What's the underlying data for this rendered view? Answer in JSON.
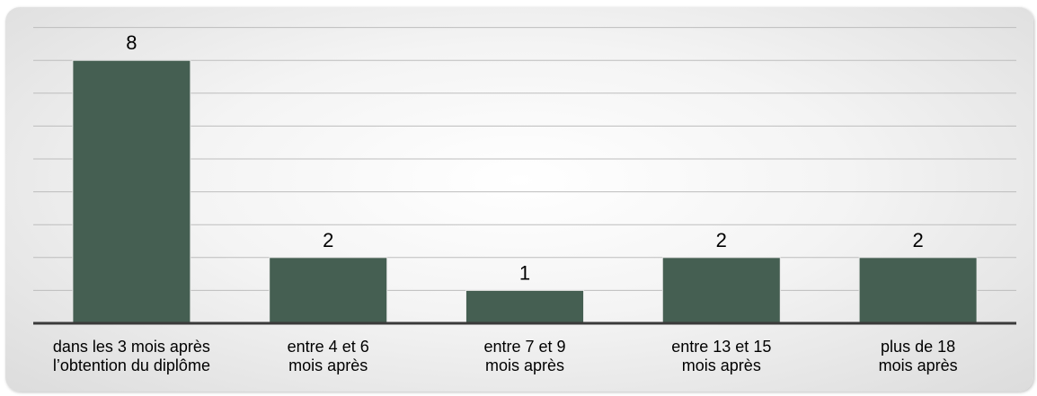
{
  "chart_data": {
    "type": "bar",
    "categories": [
      [
        "dans les 3 mois après",
        "l’obtention du diplôme"
      ],
      [
        "entre 4 et 6",
        "mois après"
      ],
      [
        "entre 7 et 9",
        "mois après"
      ],
      [
        "entre 13 et 15",
        "mois après"
      ],
      [
        "plus de 18",
        "mois après"
      ]
    ],
    "values": [
      8,
      2,
      1,
      2,
      2
    ],
    "data_labels": [
      "8",
      "2",
      "1",
      "2",
      "2"
    ],
    "title": "",
    "xlabel": "",
    "ylabel": "",
    "ylim": [
      0,
      9
    ],
    "grid": true,
    "legend": "none",
    "bar_color": "#455f52"
  }
}
